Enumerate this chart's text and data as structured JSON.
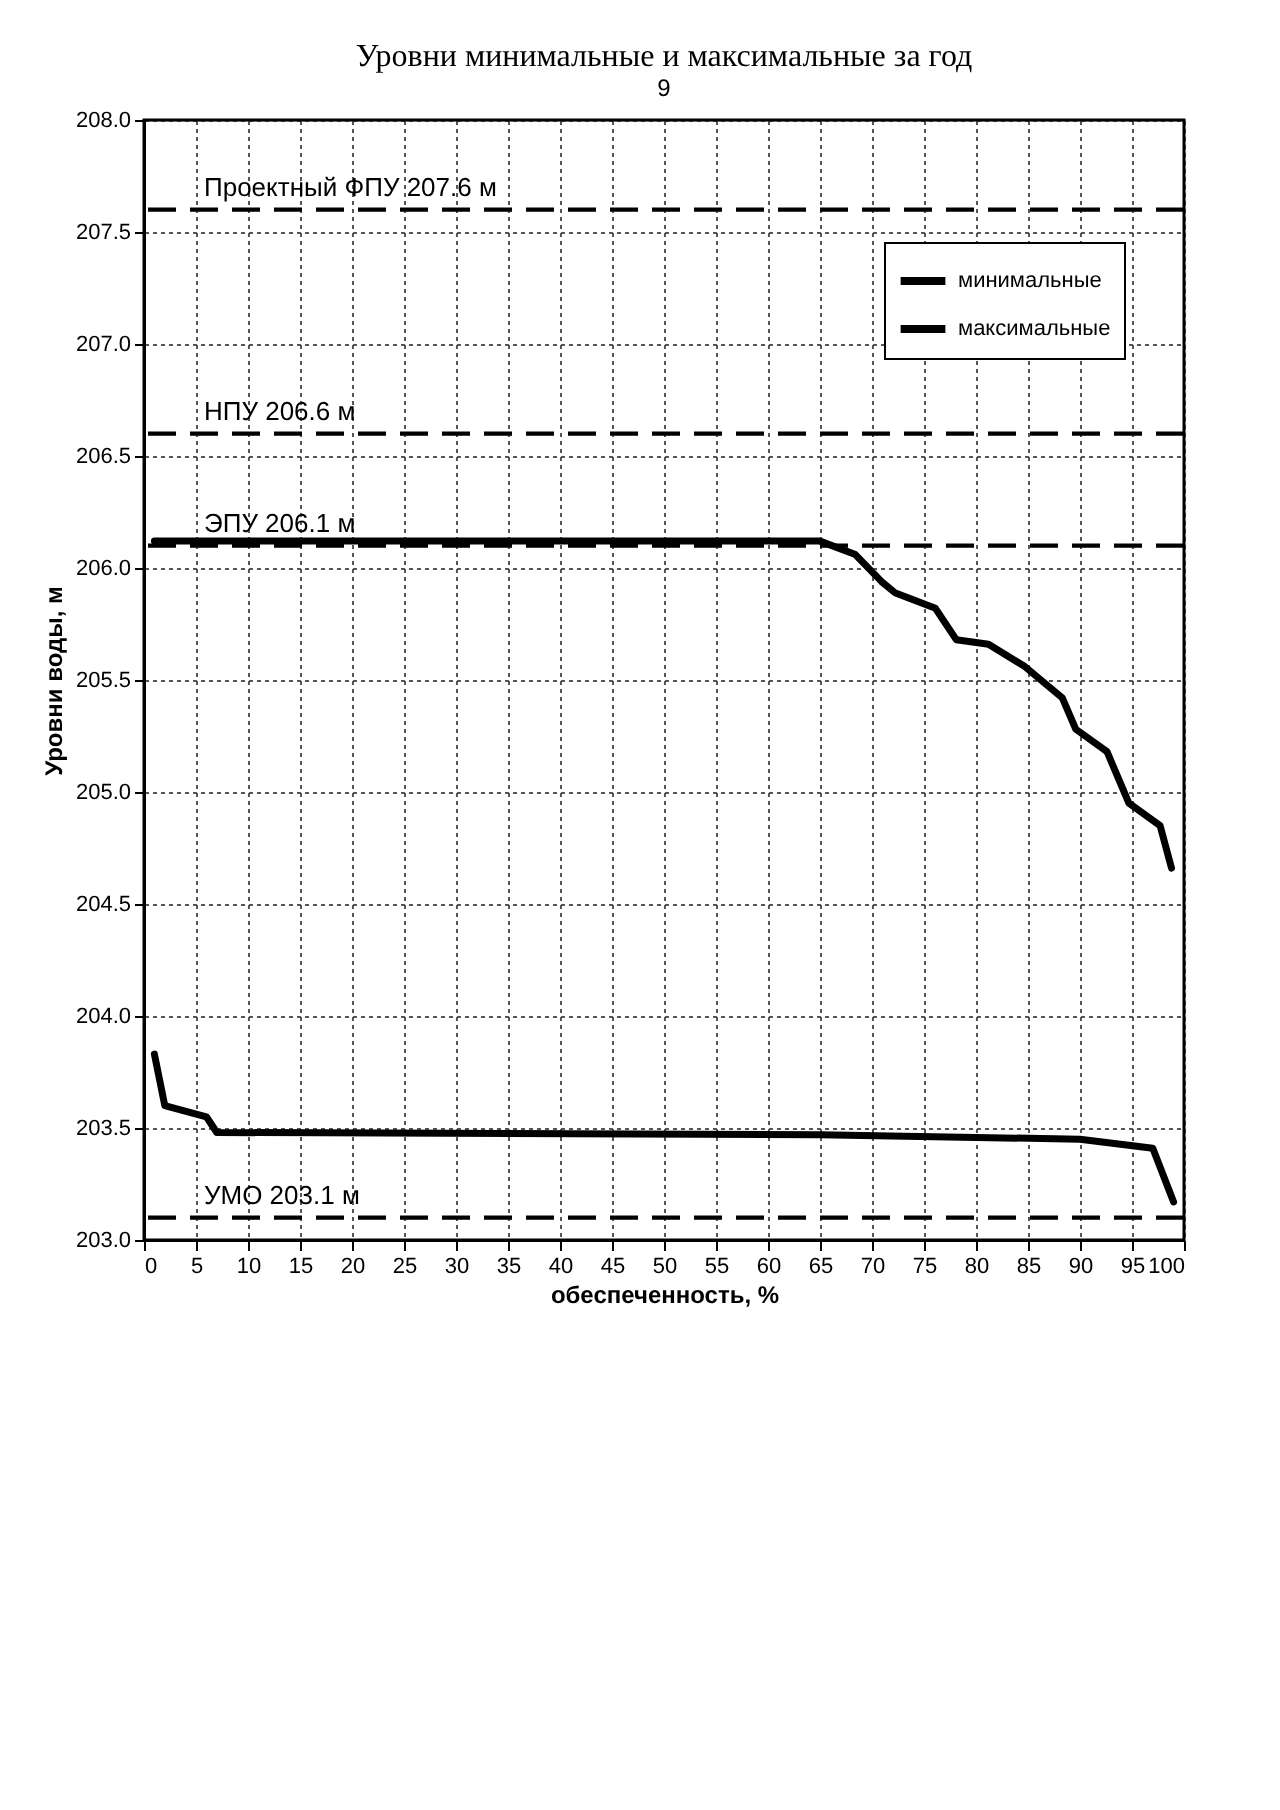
{
  "chart_data": {
    "type": "line",
    "title": "Уровни минимальные и максимальные за год",
    "xlabel": "обеспеченность, %",
    "ylabel": "Уровни воды, м",
    "xlim": [
      0,
      100
    ],
    "xticks": [
      0,
      5,
      10,
      15,
      20,
      25,
      30,
      35,
      40,
      45,
      50,
      55,
      60,
      65,
      70,
      75,
      80,
      85,
      90,
      95,
      100
    ],
    "ylim": [
      203,
      208
    ],
    "yticks": [
      {
        "value": 203,
        "label": "203.0"
      },
      {
        "value": 203.5,
        "label": "203.5"
      },
      {
        "value": 204,
        "label": "204.0"
      },
      {
        "value": 204.5,
        "label": "204.5"
      },
      {
        "value": 205,
        "label": "205.0"
      },
      {
        "value": 205.5,
        "label": "205.5"
      },
      {
        "value": 206,
        "label": "206.0"
      },
      {
        "value": 206.5,
        "label": "206.5"
      },
      {
        "value": 207,
        "label": "207.0"
      },
      {
        "value": 207.5,
        "label": "207.5"
      },
      {
        "value": 208,
        "label": "208.0"
      }
    ],
    "series": [
      {
        "name": "минимальные",
        "color": "#000000",
        "x": [
          1,
          2,
          6,
          7,
          65,
          90,
          97,
          99
        ],
        "values": [
          203.83,
          203.6,
          203.55,
          203.48,
          203.47,
          203.45,
          203.41,
          203.17
        ]
      },
      {
        "name": "максимальные",
        "color": "#000000",
        "x": [
          1,
          65,
          68.4,
          70.9,
          72.2,
          76.1,
          78.1,
          81.2,
          84.7,
          88.3,
          89.6,
          92.6,
          94.7,
          97.7,
          98.8
        ],
        "values": [
          206.12,
          206.12,
          206.06,
          205.94,
          205.89,
          205.82,
          205.68,
          205.66,
          205.56,
          205.42,
          205.28,
          205.18,
          204.95,
          204.85,
          204.66
        ]
      }
    ],
    "ref_lines": [
      {
        "axis": "y",
        "value": 207.6,
        "label": "Проектный ФПУ 207.6 м",
        "color": "#000000",
        "line_style": "dashed"
      },
      {
        "axis": "y",
        "value": 206.6,
        "label": "НПУ 206.6 м",
        "color": "#000000",
        "line_style": "dashed"
      },
      {
        "axis": "y",
        "value": 206.1,
        "label": "ЭПУ 206.1 м",
        "color": "#000000",
        "line_style": "dashed"
      },
      {
        "axis": "y",
        "value": 203.1,
        "label": "УМО 203.1 м",
        "color": "#000000",
        "line_style": "dashed"
      }
    ],
    "annotations": [
      "9"
    ],
    "grid": true,
    "legend": "top right",
    "line_style": "solid",
    "marker": "none"
  }
}
